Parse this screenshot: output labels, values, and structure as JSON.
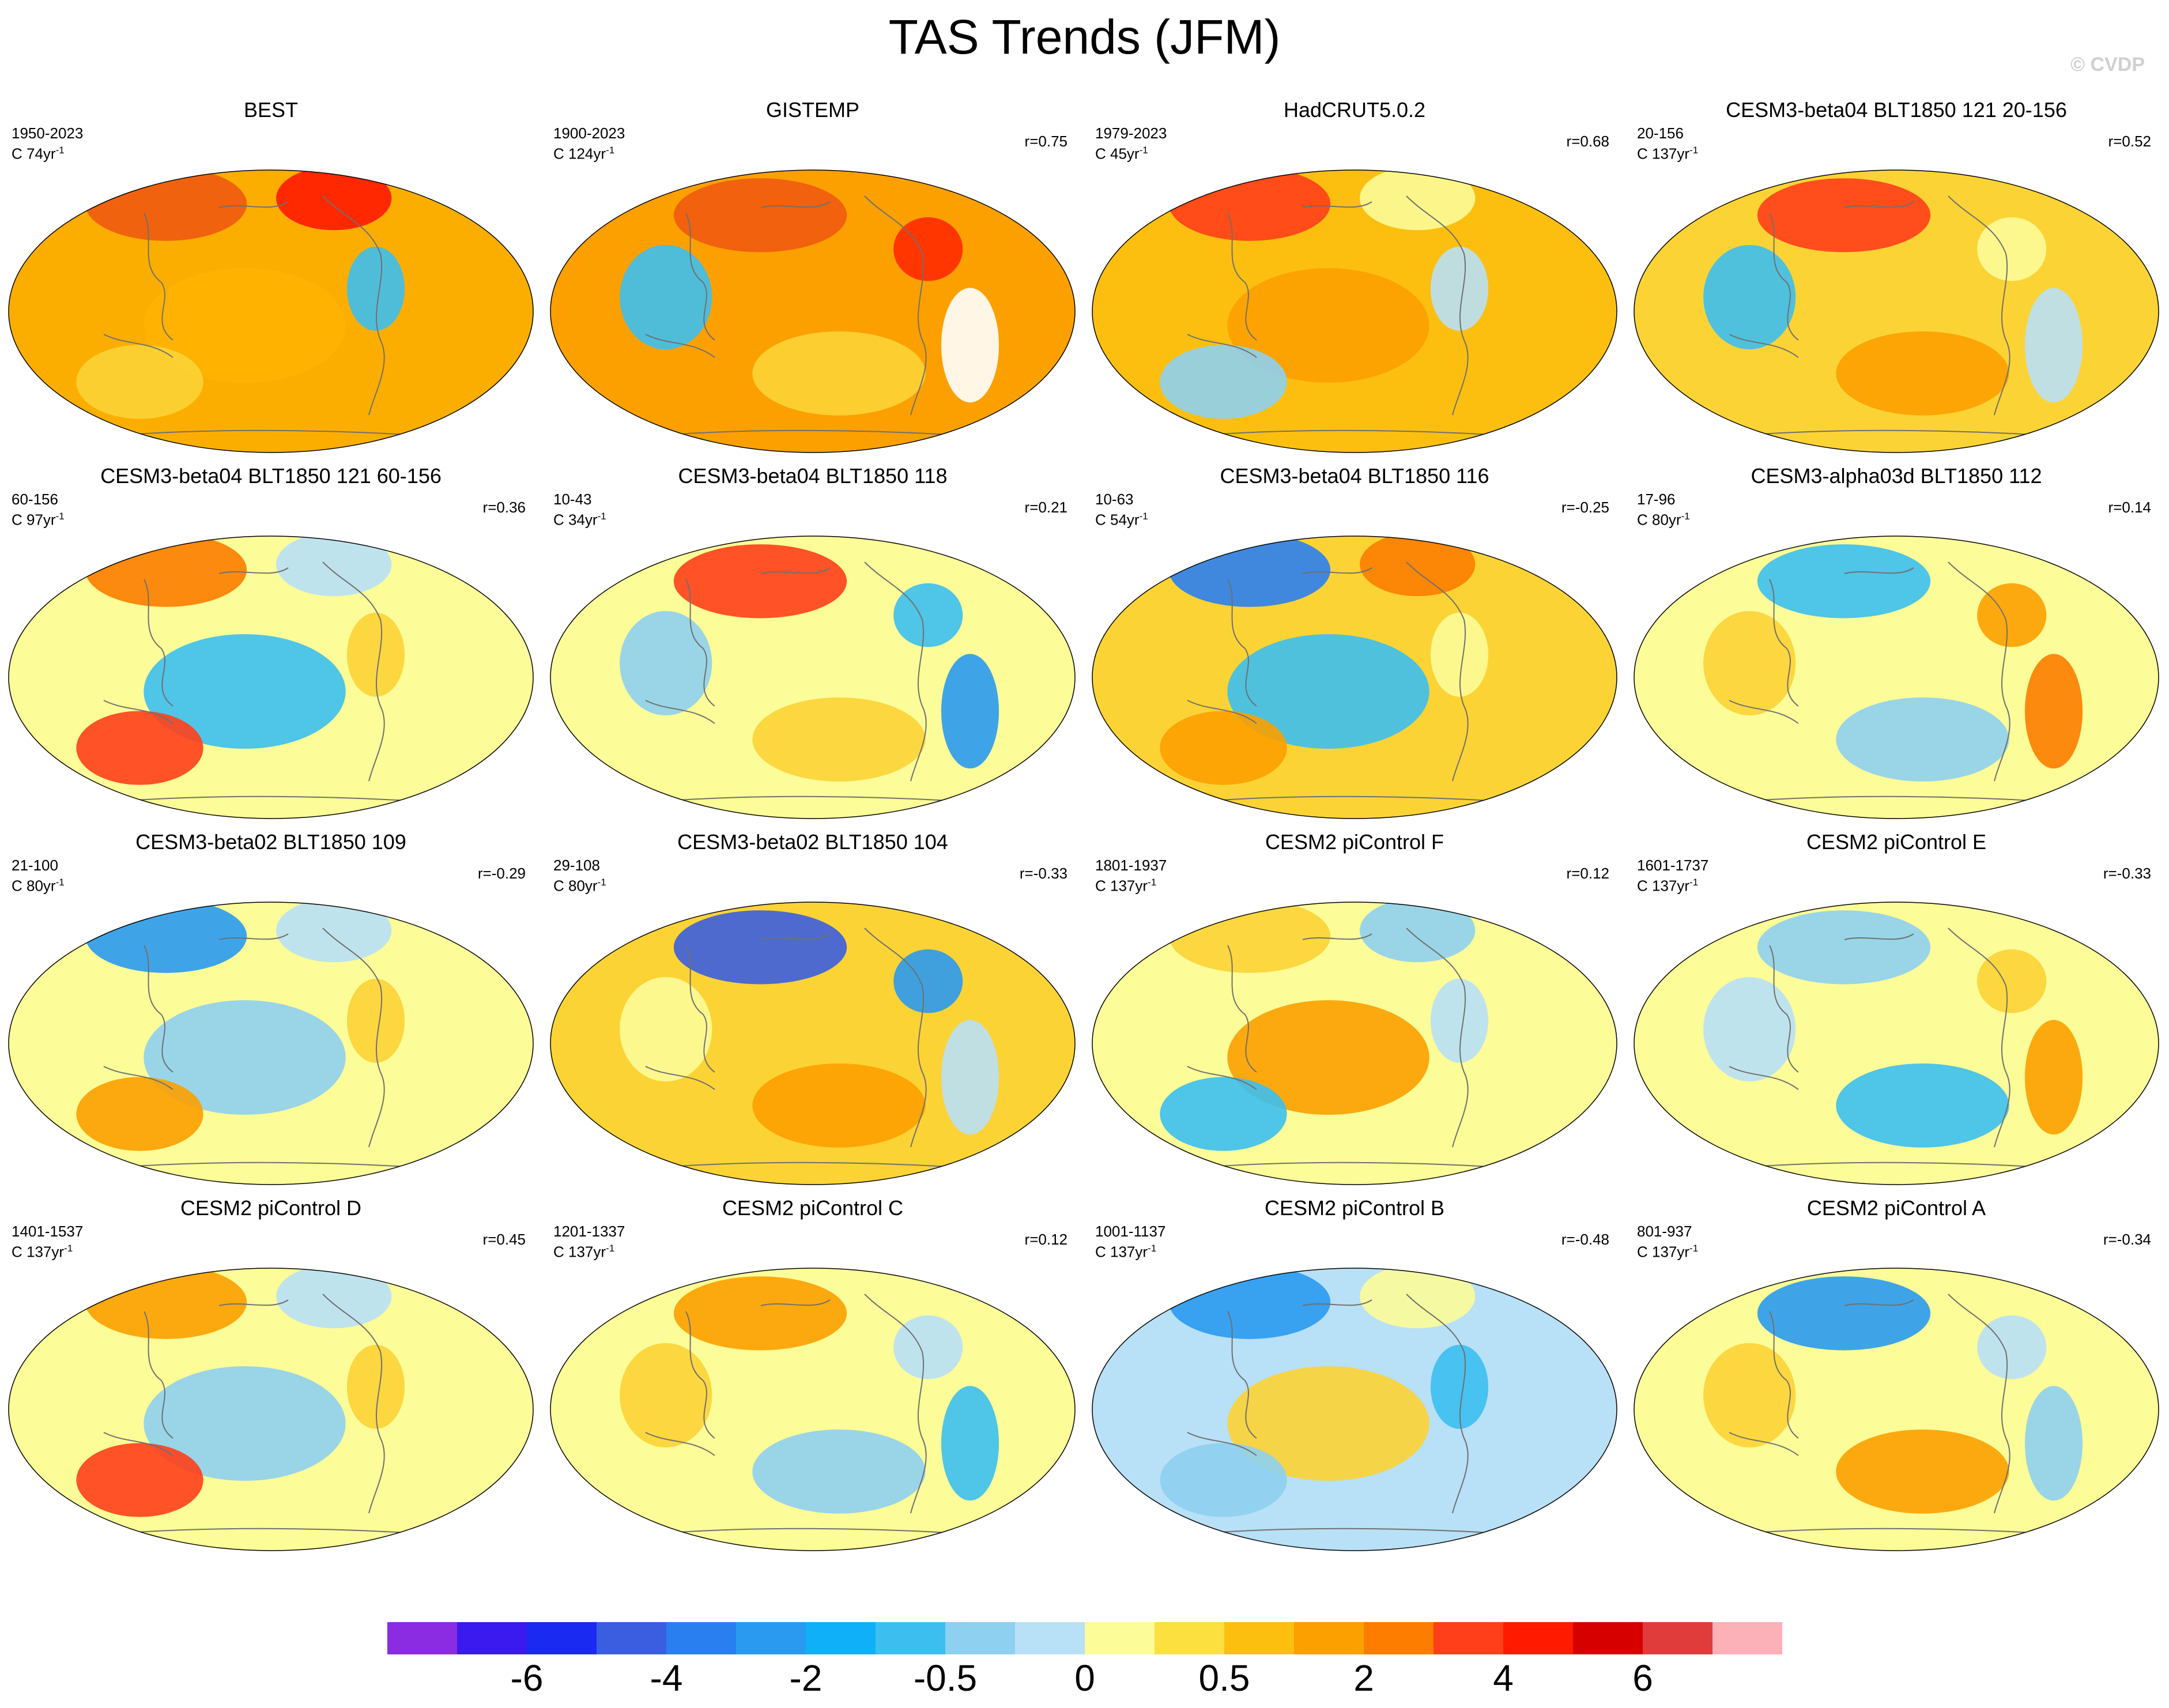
{
  "figure": {
    "title": "TAS Trends (JFM)",
    "watermark": "© CVDP"
  },
  "panels": [
    {
      "title": "BEST",
      "period": "1950-2023",
      "length": "C 74yr",
      "length_unit": "-1",
      "r": "",
      "base": "#fcae00",
      "blobs": [
        "#f05a10",
        "#ff1a00",
        "#3cbfef",
        "#ffb300",
        "#fcd335"
      ]
    },
    {
      "title": "GISTEMP",
      "period": "1900-2023",
      "length": "C 124yr",
      "length_unit": "-1",
      "r": "r=0.75",
      "base": "#fca000",
      "blobs": [
        "#f05a10",
        "#ff2a00",
        "#3cbfef",
        "#fcd335",
        "#ffffff"
      ]
    },
    {
      "title": "HadCRUT5.0.2",
      "period": "1979-2023",
      "length": "C 45yr",
      "length_unit": "-1",
      "r": "r=0.68",
      "base": "#fcbf10",
      "blobs": [
        "#ff3f1a",
        "#fcfc98",
        "#b8e0f6",
        "#fca000",
        "#8ed0f0"
      ]
    },
    {
      "title": "CESM3-beta04 BLT1850 121 20-156",
      "period": "20-156",
      "length": "C 137yr",
      "length_unit": "-1",
      "r": "r=0.52",
      "base": "#fcd335",
      "blobs": [
        "#ff3f1a",
        "#fcfc98",
        "#3cbfef",
        "#fca000",
        "#b8e0f6"
      ]
    },
    {
      "title": "CESM3-beta04 BLT1850 121 60-156",
      "period": "60-156",
      "length": "C 97yr",
      "length_unit": "-1",
      "r": "r=0.36",
      "base": "#fcfc98",
      "blobs": [
        "#fc7d00",
        "#b8e0f6",
        "#fcd335",
        "#3cbfef",
        "#ff3f1a"
      ]
    },
    {
      "title": "CESM3-beta04 BLT1850 118",
      "period": "10-43",
      "length": "C 34yr",
      "length_unit": "-1",
      "r": "r=0.21",
      "base": "#fcfc98",
      "blobs": [
        "#ff3f1a",
        "#3cbfef",
        "#8ed0f0",
        "#fcd335",
        "#2a9af0"
      ]
    },
    {
      "title": "CESM3-beta04 BLT1850 116",
      "period": "10-63",
      "length": "C 54yr",
      "length_unit": "-1",
      "r": "r=-0.25",
      "base": "#fcd335",
      "blobs": [
        "#2a7ff0",
        "#fc7d00",
        "#fcfc98",
        "#3cbfef",
        "#fca000"
      ]
    },
    {
      "title": "CESM3-alpha03d BLT1850 112",
      "period": "17-96",
      "length": "C 80yr",
      "length_unit": "-1",
      "r": "r=0.14",
      "base": "#fcfc98",
      "blobs": [
        "#3cbfef",
        "#fca000",
        "#fcd335",
        "#8ed0f0",
        "#fc7d00"
      ]
    },
    {
      "title": "CESM3-beta02 BLT1850 109",
      "period": "21-100",
      "length": "C 80yr",
      "length_unit": "-1",
      "r": "r=-0.29",
      "base": "#fcfc98",
      "blobs": [
        "#2a9af0",
        "#b8e0f6",
        "#fcd335",
        "#8ed0f0",
        "#fca000"
      ]
    },
    {
      "title": "CESM3-beta02 BLT1850 104",
      "period": "29-108",
      "length": "C 80yr",
      "length_unit": "-1",
      "r": "r=-0.33",
      "base": "#fcd335",
      "blobs": [
        "#3b5ee0",
        "#2a9af0",
        "#fcfc98",
        "#fca000",
        "#b8e0f6"
      ]
    },
    {
      "title": "CESM2 piControl F",
      "period": "1801-1937",
      "length": "C 137yr",
      "length_unit": "-1",
      "r": "r=0.12",
      "base": "#fcfc98",
      "blobs": [
        "#fcd335",
        "#8ed0f0",
        "#b8e0f6",
        "#fca000",
        "#3cbfef"
      ]
    },
    {
      "title": "CESM2 piControl E",
      "period": "1601-1737",
      "length": "C 137yr",
      "length_unit": "-1",
      "r": "r=-0.33",
      "base": "#fcfc98",
      "blobs": [
        "#8ed0f0",
        "#fcd335",
        "#b8e0f6",
        "#3cbfef",
        "#fca000"
      ]
    },
    {
      "title": "CESM2 piControl D",
      "period": "1401-1537",
      "length": "C 137yr",
      "length_unit": "-1",
      "r": "r=0.45",
      "base": "#fcfc98",
      "blobs": [
        "#fca000",
        "#b8e0f6",
        "#fcd335",
        "#8ed0f0",
        "#ff3f1a"
      ]
    },
    {
      "title": "CESM2 piControl C",
      "period": "1201-1337",
      "length": "C 137yr",
      "length_unit": "-1",
      "r": "r=0.12",
      "base": "#fcfc98",
      "blobs": [
        "#fca000",
        "#b8e0f6",
        "#fcd335",
        "#8ed0f0",
        "#3cbfef"
      ]
    },
    {
      "title": "CESM2 piControl B",
      "period": "1001-1137",
      "length": "C 137yr",
      "length_unit": "-1",
      "r": "r=-0.48",
      "base": "#b8e0f6",
      "blobs": [
        "#2a9af0",
        "#fcfc98",
        "#3cbfef",
        "#fcd335",
        "#8ed0f0"
      ]
    },
    {
      "title": "CESM2 piControl A",
      "period": "801-937",
      "length": "C 137yr",
      "length_unit": "-1",
      "r": "r=-0.34",
      "base": "#fcfc98",
      "blobs": [
        "#2a9af0",
        "#b8e0f6",
        "#fcd335",
        "#fca000",
        "#8ed0f0"
      ]
    }
  ],
  "colorbar": {
    "colors": [
      "#8b2be2",
      "#3b1af0",
      "#1a2af0",
      "#3b5ee0",
      "#2a7ff0",
      "#2a9af0",
      "#10b0f8",
      "#3cbfef",
      "#8ed0f0",
      "#b8e0f6",
      "#fcfc98",
      "#fce040",
      "#fcbf10",
      "#fca000",
      "#fc7d00",
      "#ff3f1a",
      "#ff1a00",
      "#d60000",
      "#e03c3c",
      "#fcb0b8"
    ],
    "labels": [
      {
        "text": "-6",
        "after_bin": 2
      },
      {
        "text": "-4",
        "after_bin": 4
      },
      {
        "text": "-2",
        "after_bin": 6
      },
      {
        "text": "-0.5",
        "after_bin": 8
      },
      {
        "text": "0",
        "after_bin": 10
      },
      {
        "text": "0.5",
        "after_bin": 12
      },
      {
        "text": "2",
        "after_bin": 14
      },
      {
        "text": "4",
        "after_bin": 16
      },
      {
        "text": "6",
        "after_bin": 18
      }
    ]
  }
}
